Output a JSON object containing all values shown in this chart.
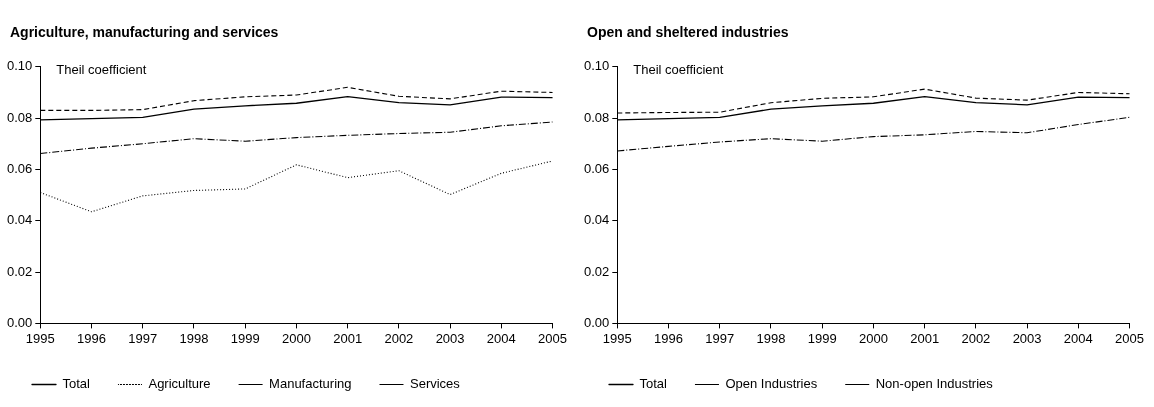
{
  "chart_data": [
    {
      "type": "line",
      "title": "Agriculture, manufacturing and services",
      "ylabel": "Theil coefficient",
      "categories": [
        "1995",
        "1996",
        "1997",
        "1998",
        "1999",
        "2000",
        "2001",
        "2002",
        "2003",
        "2004",
        "2005"
      ],
      "series": [
        {
          "name": "Total",
          "color": "#000000",
          "line_style": "solid",
          "values": [
            0.0793,
            0.0798,
            0.0803,
            0.0835,
            0.0848,
            0.0858,
            0.0884,
            0.086,
            0.0852,
            0.0882,
            0.088
          ]
        },
        {
          "name": "Agriculture",
          "color": "#000000",
          "line_style": "dotted",
          "values": [
            0.051,
            0.0435,
            0.0497,
            0.0518,
            0.0524,
            0.0618,
            0.0568,
            0.0595,
            0.0502,
            0.0585,
            0.0633
          ]
        },
        {
          "name": "Manufacturing",
          "color": "#000000",
          "line_style": "dashdot",
          "values": [
            0.0662,
            0.0683,
            0.07,
            0.072,
            0.071,
            0.0724,
            0.0733,
            0.074,
            0.0745,
            0.077,
            0.0785
          ]
        },
        {
          "name": "Services",
          "color": "#000000",
          "line_style": "dashed",
          "values": [
            0.083,
            0.083,
            0.0833,
            0.0868,
            0.0883,
            0.089,
            0.092,
            0.0885,
            0.0875,
            0.0905,
            0.09
          ]
        }
      ],
      "ylim": [
        0,
        0.1
      ],
      "yticks": [
        {
          "value": 0,
          "label": "0.00"
        },
        {
          "value": 0.02,
          "label": "0.02"
        },
        {
          "value": 0.04,
          "label": "0.04"
        },
        {
          "value": 0.06,
          "label": "0.06"
        },
        {
          "value": 0.08,
          "label": "0.08"
        },
        {
          "value": 0.1,
          "label": "0.10"
        }
      ],
      "grid": false,
      "legend": "bottom",
      "marker": "none"
    },
    {
      "type": "line",
      "title": "Open and sheltered industries",
      "ylabel": "Theil coefficient",
      "categories": [
        "1995",
        "1996",
        "1997",
        "1998",
        "1999",
        "2000",
        "2001",
        "2002",
        "2003",
        "2004",
        "2005"
      ],
      "series": [
        {
          "name": "Total",
          "color": "#000000",
          "line_style": "solid",
          "values": [
            0.0793,
            0.0798,
            0.0803,
            0.0835,
            0.0848,
            0.0858,
            0.0884,
            0.086,
            0.0852,
            0.0882,
            0.088
          ]
        },
        {
          "name": "Open Industries",
          "color": "#000000",
          "line_style": "dashdot",
          "values": [
            0.0672,
            0.069,
            0.0707,
            0.072,
            0.071,
            0.0728,
            0.0735,
            0.0748,
            0.0743,
            0.0775,
            0.0803
          ]
        },
        {
          "name": "Non-open Industries",
          "color": "#000000",
          "line_style": "dashed",
          "values": [
            0.082,
            0.0822,
            0.0823,
            0.086,
            0.0877,
            0.0883,
            0.0913,
            0.0878,
            0.087,
            0.09,
            0.0895
          ]
        }
      ],
      "ylim": [
        0,
        0.1
      ],
      "yticks": [
        {
          "value": 0,
          "label": "0.00"
        },
        {
          "value": 0.02,
          "label": "0.02"
        },
        {
          "value": 0.04,
          "label": "0.04"
        },
        {
          "value": 0.06,
          "label": "0.06"
        },
        {
          "value": 0.08,
          "label": "0.08"
        },
        {
          "value": 0.1,
          "label": "0.10"
        }
      ],
      "grid": false,
      "legend": "bottom",
      "marker": "none"
    }
  ]
}
